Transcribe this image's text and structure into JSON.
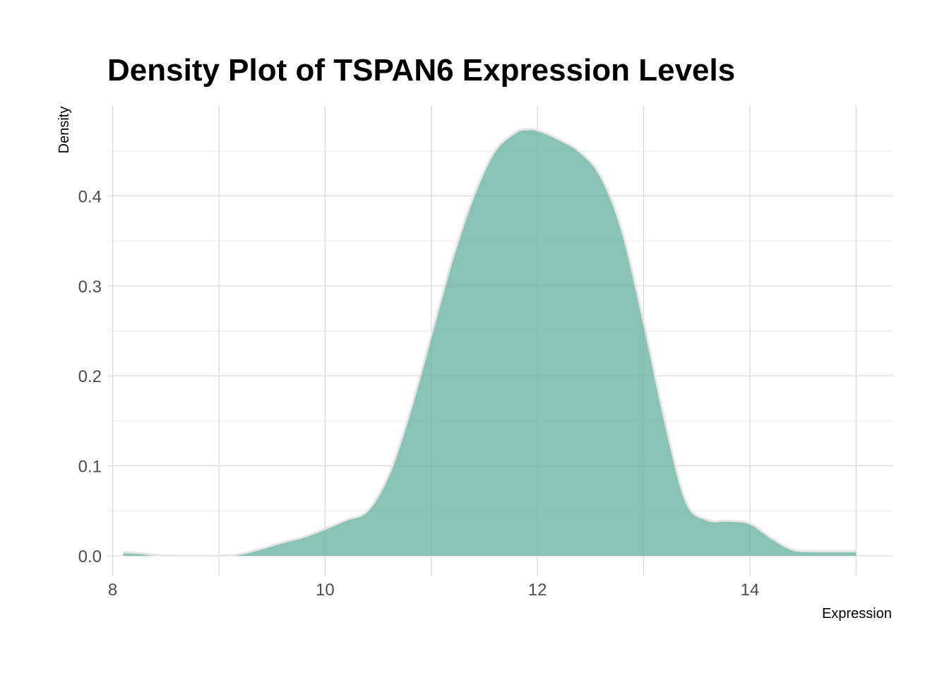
{
  "chart_data": {
    "type": "area",
    "title": "Density Plot of TSPAN6 Expression Levels",
    "xlabel": "Expression",
    "ylabel": "Density",
    "xlim": [
      7.95,
      15.35
    ],
    "ylim": [
      -0.022,
      0.5
    ],
    "x_ticks": [
      8,
      10,
      12,
      14
    ],
    "x_tick_labels": [
      "8",
      "10",
      "12",
      "14"
    ],
    "x_minor_ticks": [
      9,
      11,
      13,
      15
    ],
    "y_ticks": [
      0.0,
      0.1,
      0.2,
      0.3,
      0.4
    ],
    "y_tick_labels": [
      "0.0",
      "0.1",
      "0.2",
      "0.3",
      "0.4"
    ],
    "y_minor_ticks": [
      0.05,
      0.15,
      0.25,
      0.35,
      0.45
    ],
    "grid": true,
    "legend": "none",
    "fill_color": "#66b2a0",
    "outline_color": "#e5e5e5",
    "x": [
      8.1,
      8.25,
      8.4,
      8.6,
      8.8,
      9.0,
      9.2,
      9.4,
      9.6,
      9.8,
      10.0,
      10.2,
      10.4,
      10.6,
      10.8,
      11.0,
      11.2,
      11.4,
      11.6,
      11.8,
      11.9,
      12.0,
      12.2,
      12.4,
      12.6,
      12.8,
      13.0,
      13.2,
      13.4,
      13.6,
      13.8,
      14.0,
      14.2,
      14.4,
      14.6,
      14.8,
      15.0
    ],
    "y": [
      0.004,
      0.003,
      0.001,
      0.0,
      0.0,
      0.0,
      0.002,
      0.008,
      0.015,
      0.021,
      0.03,
      0.04,
      0.05,
      0.09,
      0.16,
      0.245,
      0.33,
      0.4,
      0.45,
      0.471,
      0.474,
      0.473,
      0.463,
      0.449,
      0.421,
      0.36,
      0.26,
      0.15,
      0.06,
      0.04,
      0.039,
      0.036,
      0.02,
      0.007,
      0.005,
      0.005,
      0.005
    ]
  }
}
